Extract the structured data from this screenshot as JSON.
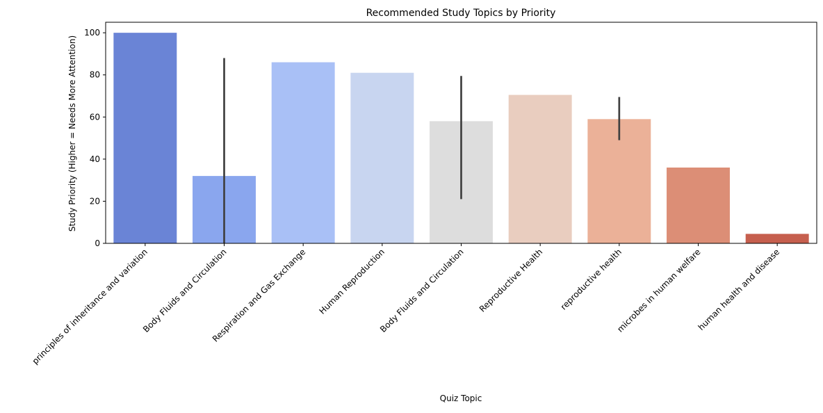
{
  "chart_data": {
    "type": "bar",
    "title": "Recommended Study Topics by Priority",
    "xlabel": "Quiz Topic",
    "ylabel": "Study Priority (Higher = Needs More Attention)",
    "ylim": [
      0,
      105
    ],
    "yticks": [
      0,
      20,
      40,
      60,
      80,
      100
    ],
    "grid": false,
    "categories": [
      "principles of inheritance and variation",
      "Body Fluids and Circulation",
      "Respiration and Gas Exchange",
      "Human Reproduction",
      "Body Fluids and Circulation",
      "Reproductive Health",
      "reproductive health",
      "microbes in human welfare",
      "human health and disease"
    ],
    "values": [
      100,
      32,
      86,
      81,
      58,
      70.5,
      59,
      36,
      4.5
    ],
    "error_bars": [
      null,
      [
        0,
        88
      ],
      null,
      null,
      [
        21,
        79.5
      ],
      null,
      [
        49,
        69.5
      ],
      null,
      null
    ],
    "colors": [
      "#6a84d6",
      "#8aa6ee",
      "#a9c0f6",
      "#c8d5f0",
      "#dddddd",
      "#e9cdbf",
      "#ebb198",
      "#dc8e76",
      "#c65f4e"
    ]
  }
}
